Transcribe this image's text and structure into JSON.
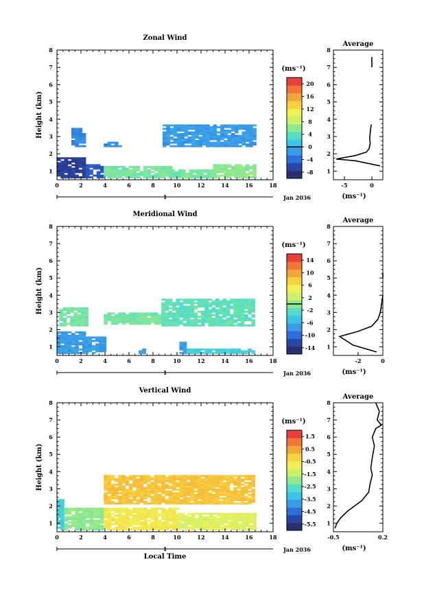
{
  "figure": {
    "xlabel": "Local Time",
    "date_label": "Jan 2036",
    "day_marker": "1",
    "ylabel": "Height (km)",
    "average_title": "Average",
    "unit_label": "(ms⁻¹)"
  },
  "chart_data": [
    {
      "type": "heatmap",
      "title": "Zonal Wind",
      "xlabel": "",
      "ylabel": "Height (km)",
      "xlim": [
        0,
        18
      ],
      "ylim": [
        0.5,
        8
      ],
      "x_ticks": [
        0,
        2,
        4,
        6,
        8,
        10,
        12,
        14,
        16,
        18
      ],
      "y_ticks": [
        1,
        2,
        3,
        4,
        5,
        6,
        7,
        8
      ],
      "colorbar": {
        "unit": "(ms⁻¹)",
        "ticks": [
          20,
          16,
          12,
          8,
          4,
          0,
          -4,
          -8
        ],
        "range": [
          -10,
          22
        ],
        "zero_line": 0
      },
      "regions": [
        {
          "x": [
            0.0,
            2.4
          ],
          "y": [
            0.6,
            1.8
          ],
          "value": -8
        },
        {
          "x": [
            2.4,
            3.9
          ],
          "y": [
            0.6,
            1.4
          ],
          "value": -6
        },
        {
          "x": [
            3.9,
            9.5
          ],
          "y": [
            0.6,
            1.3
          ],
          "value": 5
        },
        {
          "x": [
            9.5,
            13.0
          ],
          "y": [
            0.6,
            1.1
          ],
          "value": 5
        },
        {
          "x": [
            13.0,
            16.5
          ],
          "y": [
            0.6,
            1.4
          ],
          "value": 6
        },
        {
          "x": [
            1.2,
            2.4
          ],
          "y": [
            2.4,
            3.5
          ],
          "value": -3
        },
        {
          "x": [
            3.9,
            5.3
          ],
          "y": [
            2.4,
            2.7
          ],
          "value": -3
        },
        {
          "x": [
            8.8,
            16.4
          ],
          "y": [
            2.4,
            3.7
          ],
          "value": -2
        }
      ],
      "average": {
        "xlim": [
          -7,
          2
        ],
        "ylim": [
          0.5,
          8
        ],
        "x_ticks": [
          -5,
          0
        ],
        "profile": [
          [
            1.5,
            1.3
          ],
          [
            -3,
            1.6
          ],
          [
            -6.5,
            1.7
          ],
          [
            -3,
            1.9
          ],
          [
            -1,
            2.1
          ],
          [
            -0.5,
            2.3
          ],
          [
            -0.3,
            2.6
          ],
          [
            -0.4,
            2.9
          ],
          [
            -0.3,
            3.2
          ],
          [
            -0.2,
            3.5
          ],
          [
            -0.1,
            3.7
          ]
        ],
        "profile2": [
          [
            0,
            7.0
          ],
          [
            0,
            7.6
          ]
        ]
      }
    },
    {
      "type": "heatmap",
      "title": "Meridional Wind",
      "xlabel": "",
      "ylabel": "Height (km)",
      "xlim": [
        0,
        18
      ],
      "ylim": [
        0.5,
        8
      ],
      "x_ticks": [
        0,
        2,
        4,
        6,
        8,
        10,
        12,
        14,
        16,
        18
      ],
      "y_ticks": [
        1,
        2,
        3,
        4,
        5,
        6,
        7,
        8
      ],
      "colorbar": {
        "unit": "(ms⁻¹)",
        "ticks": [
          14,
          10,
          6,
          2,
          -2,
          -6,
          -10,
          -14
        ],
        "range": [
          -16,
          16
        ],
        "zero_line": 0
      },
      "regions": [
        {
          "x": [
            0.0,
            2.3
          ],
          "y": [
            0.6,
            1.9
          ],
          "value": -8
        },
        {
          "x": [
            2.3,
            3.9
          ],
          "y": [
            0.6,
            1.6
          ],
          "value": -8
        },
        {
          "x": [
            6.8,
            7.4
          ],
          "y": [
            0.6,
            0.9
          ],
          "value": -8
        },
        {
          "x": [
            10.2,
            10.8
          ],
          "y": [
            0.6,
            1.3
          ],
          "value": -8
        },
        {
          "x": [
            10.8,
            16.5
          ],
          "y": [
            0.6,
            0.9
          ],
          "value": -4
        },
        {
          "x": [
            0.2,
            2.6
          ],
          "y": [
            2.2,
            3.3
          ],
          "value": -1
        },
        {
          "x": [
            3.9,
            8.7
          ],
          "y": [
            2.3,
            3.0
          ],
          "value": -1
        },
        {
          "x": [
            8.7,
            16.4
          ],
          "y": [
            2.2,
            3.8
          ],
          "value": -2
        }
      ],
      "average": {
        "xlim": [
          -4,
          0
        ],
        "ylim": [
          0.5,
          8
        ],
        "x_ticks": [
          -2,
          0
        ],
        "profile": [
          [
            -0.5,
            0.7
          ],
          [
            -2.4,
            1.1
          ],
          [
            -3.5,
            1.6
          ],
          [
            -2.0,
            1.9
          ],
          [
            -0.9,
            2.2
          ],
          [
            -0.4,
            2.6
          ],
          [
            -0.2,
            3.0
          ],
          [
            -0.1,
            3.5
          ],
          [
            0,
            4.0
          ]
        ],
        "profile2": [
          [
            0,
            5.0
          ],
          [
            0,
            5.3
          ]
        ]
      }
    },
    {
      "type": "heatmap",
      "title": "Vertical Wind",
      "xlabel": "Local Time",
      "ylabel": "Height (km)",
      "xlim": [
        0,
        18
      ],
      "ylim": [
        0.5,
        8
      ],
      "x_ticks": [
        0,
        2,
        4,
        6,
        8,
        10,
        12,
        14,
        16,
        18
      ],
      "y_ticks": [
        1,
        2,
        3,
        4,
        5,
        6,
        7,
        8
      ],
      "colorbar": {
        "unit": "(ms⁻¹)",
        "ticks": [
          1.5,
          0.5,
          -0.5,
          -1.5,
          -2.5,
          -3.5,
          -4.5,
          -5.5
        ],
        "range": [
          -6,
          2
        ]
      },
      "regions": [
        {
          "x": [
            0.0,
            0.6
          ],
          "y": [
            0.6,
            2.4
          ],
          "value": -3.0
        },
        {
          "x": [
            0.6,
            3.9
          ],
          "y": [
            0.6,
            1.9
          ],
          "value": -2.0
        },
        {
          "x": [
            3.9,
            10.0
          ],
          "y": [
            0.6,
            1.9
          ],
          "value": -0.5
        },
        {
          "x": [
            10.0,
            16.5
          ],
          "y": [
            0.6,
            1.6
          ],
          "value": -1.0
        },
        {
          "x": [
            3.9,
            16.4
          ],
          "y": [
            2.1,
            3.8
          ],
          "value": 0.2
        }
      ],
      "average": {
        "xlim": [
          -0.5,
          0.2
        ],
        "ylim": [
          0.5,
          8
        ],
        "x_ticks": [
          -0.5,
          0.2
        ],
        "profile": [
          [
            -0.48,
            0.7
          ],
          [
            -0.45,
            1.0
          ],
          [
            -0.4,
            1.3
          ],
          [
            -0.3,
            1.7
          ],
          [
            -0.1,
            2.3
          ],
          [
            0.0,
            2.8
          ],
          [
            0.02,
            3.3
          ],
          [
            0.05,
            3.8
          ],
          [
            0.03,
            4.2
          ],
          [
            0.05,
            4.8
          ],
          [
            0.08,
            5.5
          ],
          [
            0.05,
            6.0
          ],
          [
            0.1,
            6.5
          ],
          [
            0.18,
            6.7
          ],
          [
            0.12,
            7.0
          ],
          [
            0.15,
            7.5
          ],
          [
            0.1,
            8.0
          ]
        ]
      }
    }
  ]
}
